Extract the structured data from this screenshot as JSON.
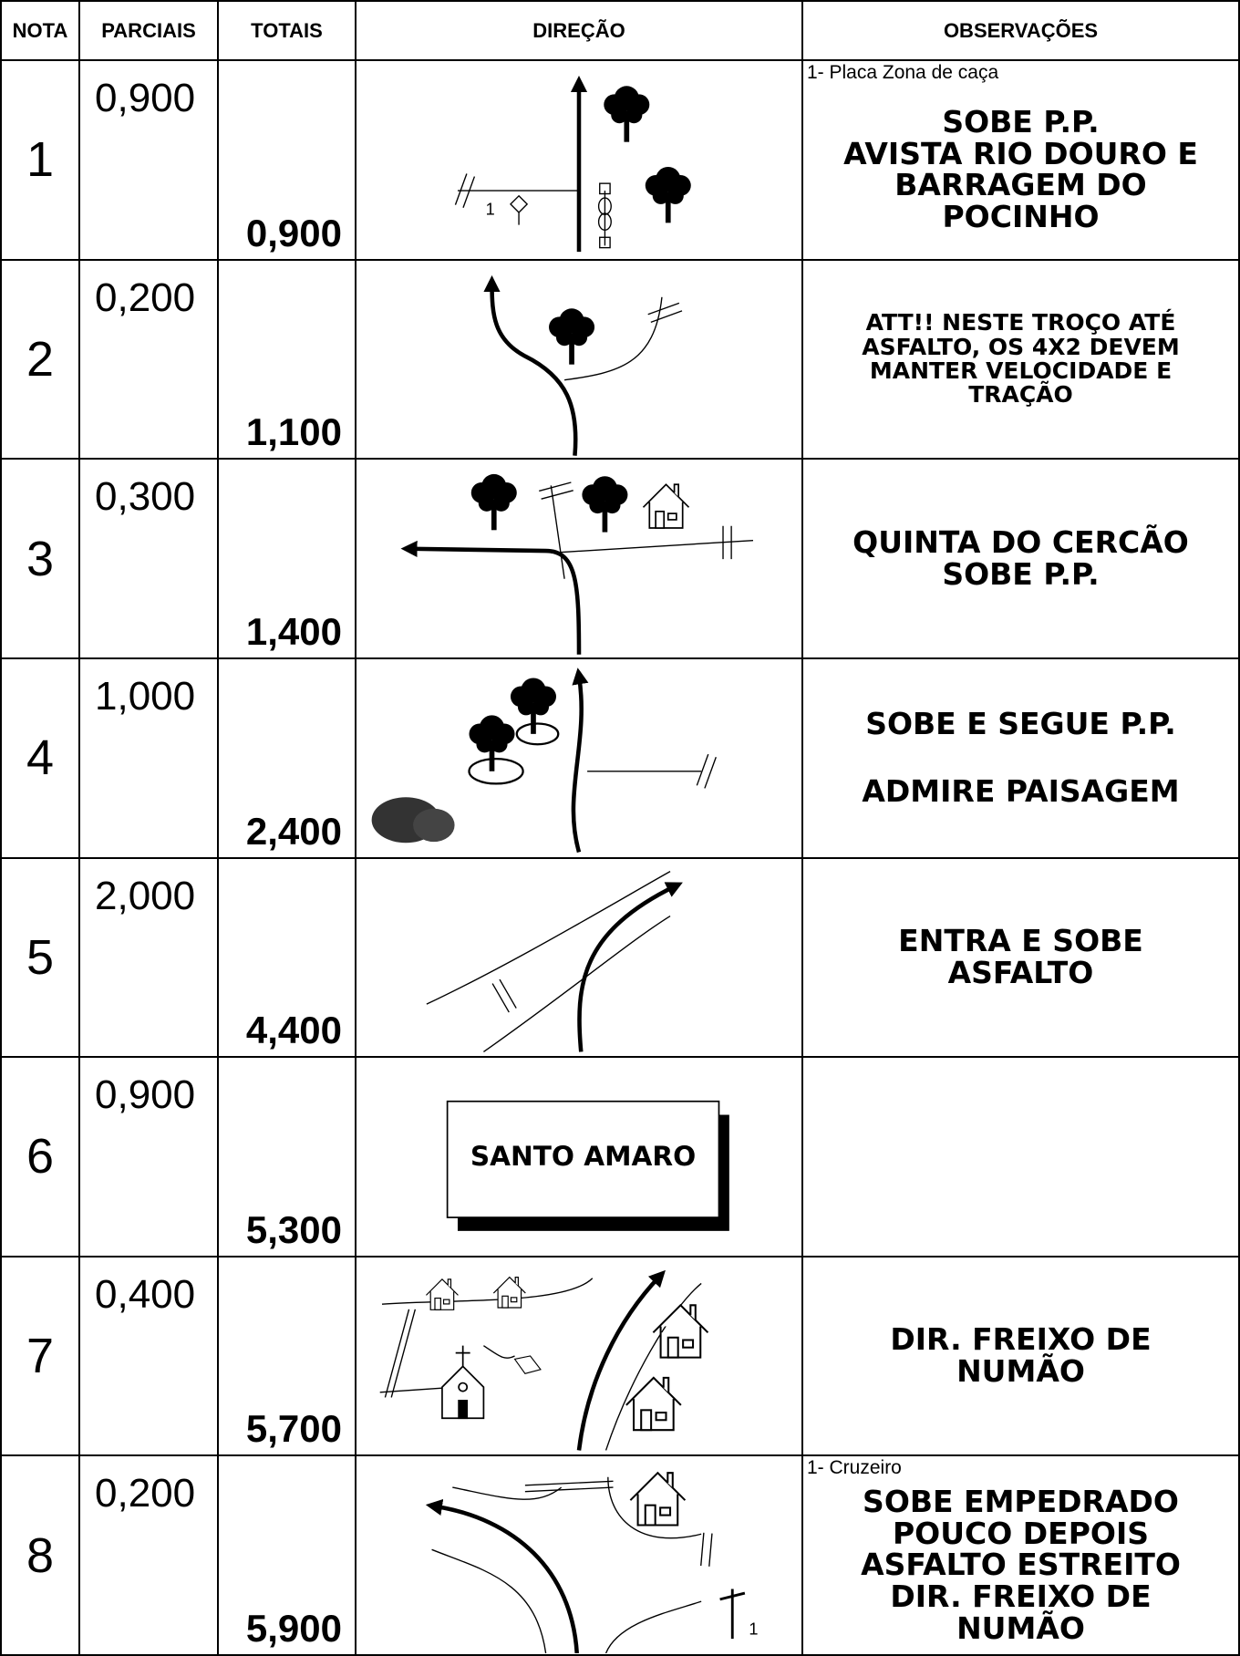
{
  "header": {
    "columns": [
      "NOTA",
      "PARCIAIS",
      "TOTAIS",
      "DIREÇÃO",
      "OBSERVAÇÕES"
    ]
  },
  "rows": [
    {
      "nota": "1",
      "parcial": "0,900",
      "total": "0,900",
      "note": "1- Placa Zona de caça",
      "observation": [
        "SOBE P.P.",
        "AVISTA RIO DOURO E",
        "BARRAGEM DO",
        "POCINHO"
      ],
      "diagram_labels": [
        "1"
      ]
    },
    {
      "nota": "2",
      "parcial": "0,200",
      "total": "1,100",
      "observation": [
        "ATT!! NESTE TROÇO ATÉ",
        "ASFALTO, OS 4X2 DEVEM",
        "MANTER VELOCIDADE E",
        "TRAÇÃO"
      ]
    },
    {
      "nota": "3",
      "parcial": "0,300",
      "total": "1,400",
      "observation": [
        "QUINTA DO CERCÃO",
        "SOBE P.P."
      ]
    },
    {
      "nota": "4",
      "parcial": "1,000",
      "total": "2,400",
      "observation": [
        "SOBE E SEGUE P.P.",
        "ADMIRE PAISAGEM"
      ]
    },
    {
      "nota": "5",
      "parcial": "2,000",
      "total": "4,400",
      "observation": [
        "ENTRA E SOBE",
        "ASFALTO"
      ]
    },
    {
      "nota": "6",
      "parcial": "0,900",
      "total": "5,300",
      "diagram_labels": [
        "SANTO AMARO"
      ]
    },
    {
      "nota": "7",
      "parcial": "0,400",
      "total": "5,700",
      "observation": [
        "DIR. FREIXO DE",
        "NUMÃO"
      ]
    },
    {
      "nota": "8",
      "parcial": "0,200",
      "total": "5,900",
      "note": "1- Cruzeiro",
      "observation": [
        "SOBE EMPEDRADO",
        "POUCO DEPOIS",
        "ASFALTO ESTREITO",
        "DIR. FREIXO DE",
        "NUMÃO"
      ],
      "diagram_labels": [
        "1"
      ]
    }
  ]
}
